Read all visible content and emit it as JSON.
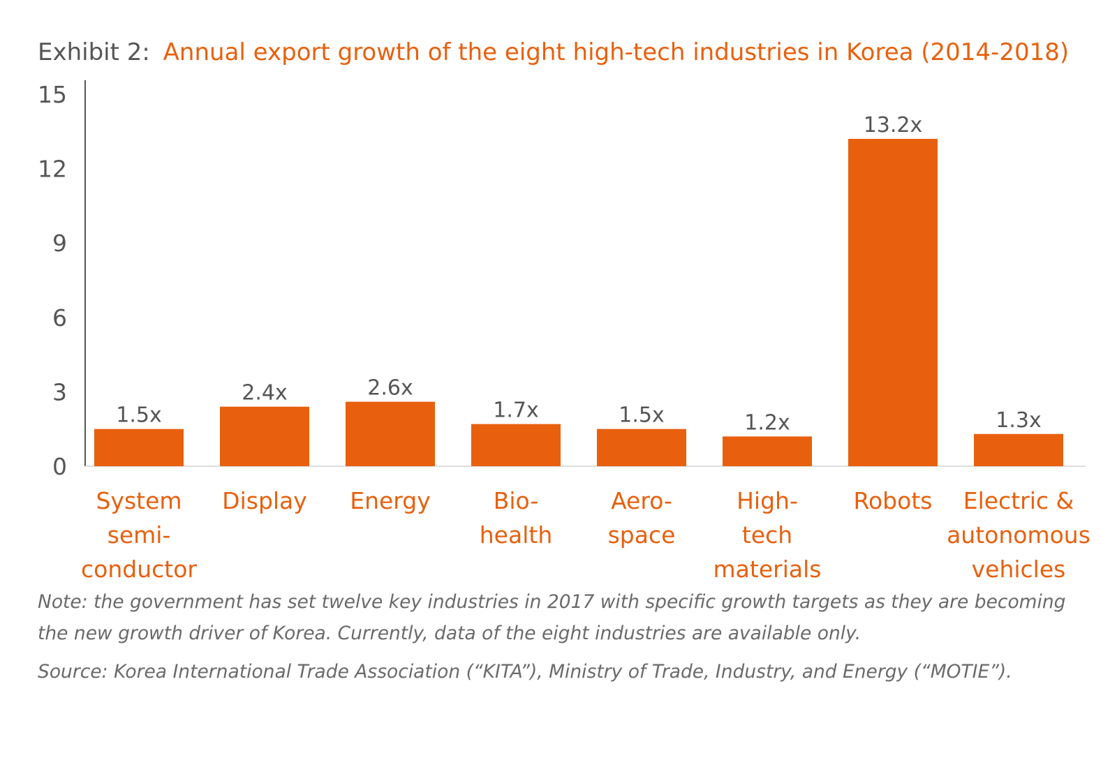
{
  "chart_data": {
    "type": "bar",
    "title_prefix": "Exhibit 2:",
    "title": "Annual export growth of the eight high-tech industries in Korea (2014-2018)",
    "categories": [
      [
        "System",
        "semi-",
        "conductor"
      ],
      [
        "Display"
      ],
      [
        "Energy"
      ],
      [
        "Bio-",
        "health"
      ],
      [
        "Aero-",
        "space"
      ],
      [
        "High-",
        "tech",
        "materials"
      ],
      [
        "Robots"
      ],
      [
        "Electric &",
        "autonomous",
        "vehicles"
      ]
    ],
    "values": [
      1.5,
      2.4,
      2.6,
      1.7,
      1.5,
      1.2,
      13.2,
      1.3
    ],
    "data_labels": [
      "1.5x",
      "2.4x",
      "2.6x",
      "1.7x",
      "1.5x",
      "1.2x",
      "13.2x",
      "1.3x"
    ],
    "yticks": [
      0,
      3,
      6,
      9,
      12,
      15
    ],
    "ylim": [
      0,
      15
    ],
    "xlabel": "",
    "ylabel": "",
    "grid": false,
    "bar_color": "#e8600e",
    "axis_color": "#555555"
  },
  "footer": {
    "note": "Note: the government has set twelve key industries in 2017 with specific growth targets as they are becoming the new growth driver of Korea. Currently, data of the eight industries are available only.",
    "source": "Source: Korea International Trade Association (“KITA”), Ministry of Trade, Industry, and Energy (“MOTIE”)."
  }
}
